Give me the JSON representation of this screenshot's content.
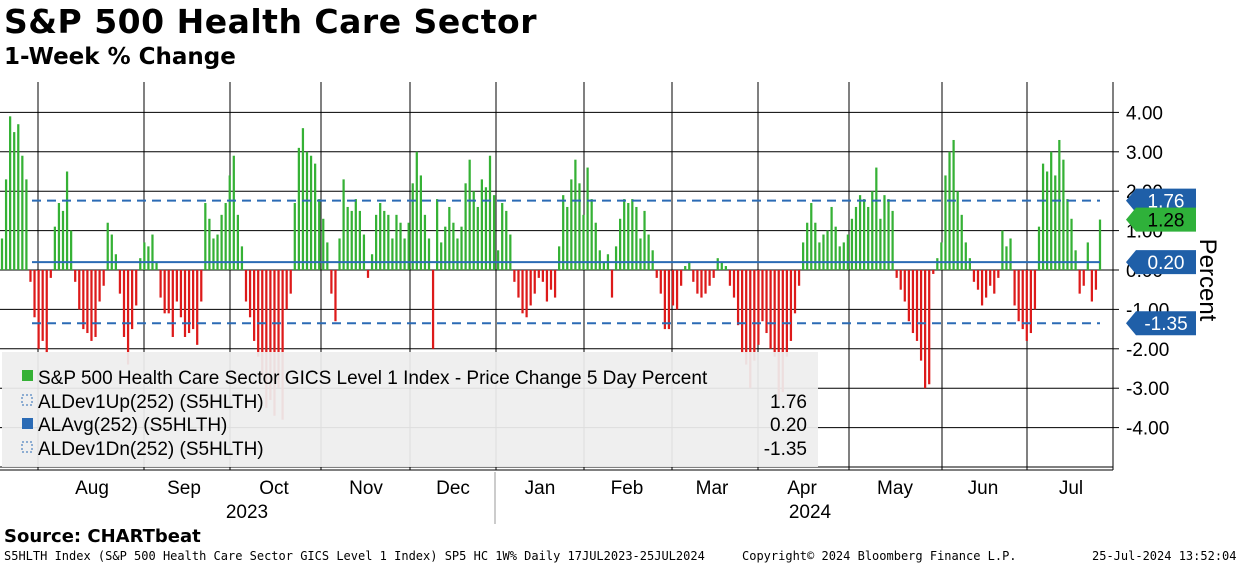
{
  "header": {
    "title": "S&P 500 Health Care Sector",
    "subtitle": "1-Week % Change"
  },
  "footer": {
    "source": "Source: CHARTbeat",
    "ticker_line": "S5HLTH Index (S&P 500 Health Care Sector GICS Level 1 Index) SP5 HC 1W%  Daily 17JUL2023-25JUL2024",
    "copyright": "Copyright© 2024 Bloomberg Finance L.P.",
    "timestamp": "25-Jul-2024 13:52:04"
  },
  "chart_data": {
    "type": "bar",
    "ylabel": "Percent",
    "ylim": [
      -5,
      5
    ],
    "y_ticks": [
      "4.00",
      "3.00",
      "2.00",
      "1.00",
      "0.00",
      "-1.00",
      "-2.00",
      "-3.00",
      "-4.00"
    ],
    "x_month_labels": [
      "Aug",
      "Sep",
      "Oct",
      "Nov",
      "Dec",
      "Jan",
      "Feb",
      "Mar",
      "Apr",
      "May",
      "Jun",
      "Jul"
    ],
    "x_year_labels": [
      "2023",
      "2024"
    ],
    "series": [
      {
        "name": "S&P 500 Health Care Sector GICS Level 1 Index - Price Change 5 Day Percent",
        "color_up": "#35b135",
        "color_down": "#dd1a1a",
        "last_value": "1.28",
        "values": [
          0.8,
          2.3,
          3.9,
          3.5,
          3.7,
          2.9,
          2.3,
          -0.3,
          -1.2,
          -2.0,
          -1.8,
          -2.1,
          -0.2,
          1.1,
          1.7,
          1.5,
          2.5,
          1.0,
          -0.3,
          -1.0,
          -1.5,
          -1.6,
          -1.8,
          -1.7,
          -0.8,
          -0.4,
          1.2,
          0.9,
          0.4,
          -0.6,
          -1.7,
          -2.4,
          -1.5,
          -0.9,
          0.3,
          0.7,
          0.6,
          0.9,
          0.2,
          -0.7,
          -1.1,
          -1.1,
          -1.7,
          -0.8,
          -1.2,
          -1.7,
          -1.6,
          -1.5,
          -1.9,
          -0.8,
          1.7,
          1.3,
          0.8,
          0.9,
          1.4,
          1.7,
          2.4,
          2.9,
          1.4,
          0.6,
          -0.8,
          -1.2,
          -1.8,
          -2.2,
          -2.7,
          -3.5,
          -3.3,
          -3.7,
          -3.0,
          -3.8,
          -1.0,
          -0.6,
          1.7,
          3.1,
          3.6,
          3.0,
          2.9,
          2.7,
          1.8,
          1.3,
          0.7,
          -0.6,
          -1.3,
          0.8,
          2.3,
          1.6,
          1.5,
          1.8,
          1.5,
          0.9,
          -0.2,
          0.4,
          1.4,
          1.7,
          1.5,
          1.4,
          0.8,
          1.4,
          1.2,
          0.8,
          1.2,
          2.2,
          3.0,
          2.4,
          1.4,
          0.8,
          -2.0,
          1.8,
          0.7,
          1.1,
          1.6,
          1.2,
          0.8,
          1.1,
          2.2,
          2.8,
          2.0,
          1.6,
          2.3,
          2.1,
          2.9,
          1.9,
          0.5,
          1.7,
          1.5,
          0.9,
          -0.3,
          -0.7,
          -1.1,
          -1.2,
          -0.9,
          -0.6,
          -0.2,
          -0.3,
          -0.8,
          -0.5,
          -0.7,
          0.6,
          1.9,
          1.6,
          2.3,
          2.8,
          2.2,
          1.4,
          2.6,
          1.8,
          1.2,
          0.5,
          0.2,
          0.4,
          -0.7,
          0.6,
          1.3,
          1.8,
          1.7,
          1.8,
          1.6,
          0.8,
          1.5,
          0.9,
          0.5,
          -0.2,
          -0.6,
          -1.5,
          -1.5,
          -0.9,
          -1.0,
          -0.4,
          0.1,
          0.2,
          -0.3,
          -0.6,
          -0.7,
          -0.6,
          -0.4,
          -0.2,
          0.3,
          0.2,
          0.1,
          -0.4,
          -0.7,
          -1.4,
          -2.1,
          -2.4,
          -3.0,
          -2.3,
          -1.9,
          -1.3,
          -1.6,
          -2.0,
          -2.2,
          -3.3,
          -3.1,
          -2.2,
          -1.8,
          -1.1,
          -0.4,
          0.7,
          1.2,
          1.7,
          1.2,
          0.7,
          0.9,
          1.0,
          1.6,
          1.1,
          0.6,
          0.7,
          0.9,
          1.3,
          1.6,
          1.9,
          1.8,
          1.6,
          2.0,
          2.6,
          1.3,
          1.9,
          1.8,
          1.5,
          -0.2,
          -0.5,
          -0.8,
          -1.3,
          -1.6,
          -1.8,
          -2.3,
          -3.0,
          -2.9,
          -0.1,
          0.3,
          0.7,
          2.4,
          3.0,
          3.3,
          2.0,
          1.4,
          0.7,
          0.3,
          -0.3,
          -0.5,
          -0.9,
          -0.7,
          -0.4,
          -0.6,
          -0.2,
          1.0,
          0.6,
          0.8,
          -0.9,
          -1.3,
          -1.5,
          -1.8,
          -1.6,
          -1.0,
          1.1,
          2.7,
          2.5,
          3.0,
          2.4,
          3.3,
          2.8,
          1.8,
          1.3,
          0.5,
          -0.6,
          -0.4,
          0.7,
          -0.8,
          -0.5,
          1.28
        ]
      },
      {
        "name": "ALDev1Up(252) (S5HLTH)",
        "value": 1.76,
        "label": "1.76",
        "color": "#2b6bb5",
        "style": "dashed"
      },
      {
        "name": "ALAvg(252) (S5HLTH)",
        "value": 0.2,
        "label": "0.20",
        "color": "#2b6bb5",
        "style": "solid"
      },
      {
        "name": "ALDev1Dn(252) (S5HLTH)",
        "value": -1.35,
        "label": "-1.35",
        "color": "#2b6bb5",
        "style": "dashed"
      }
    ],
    "grid": true,
    "legend_position": "bottom-left"
  }
}
